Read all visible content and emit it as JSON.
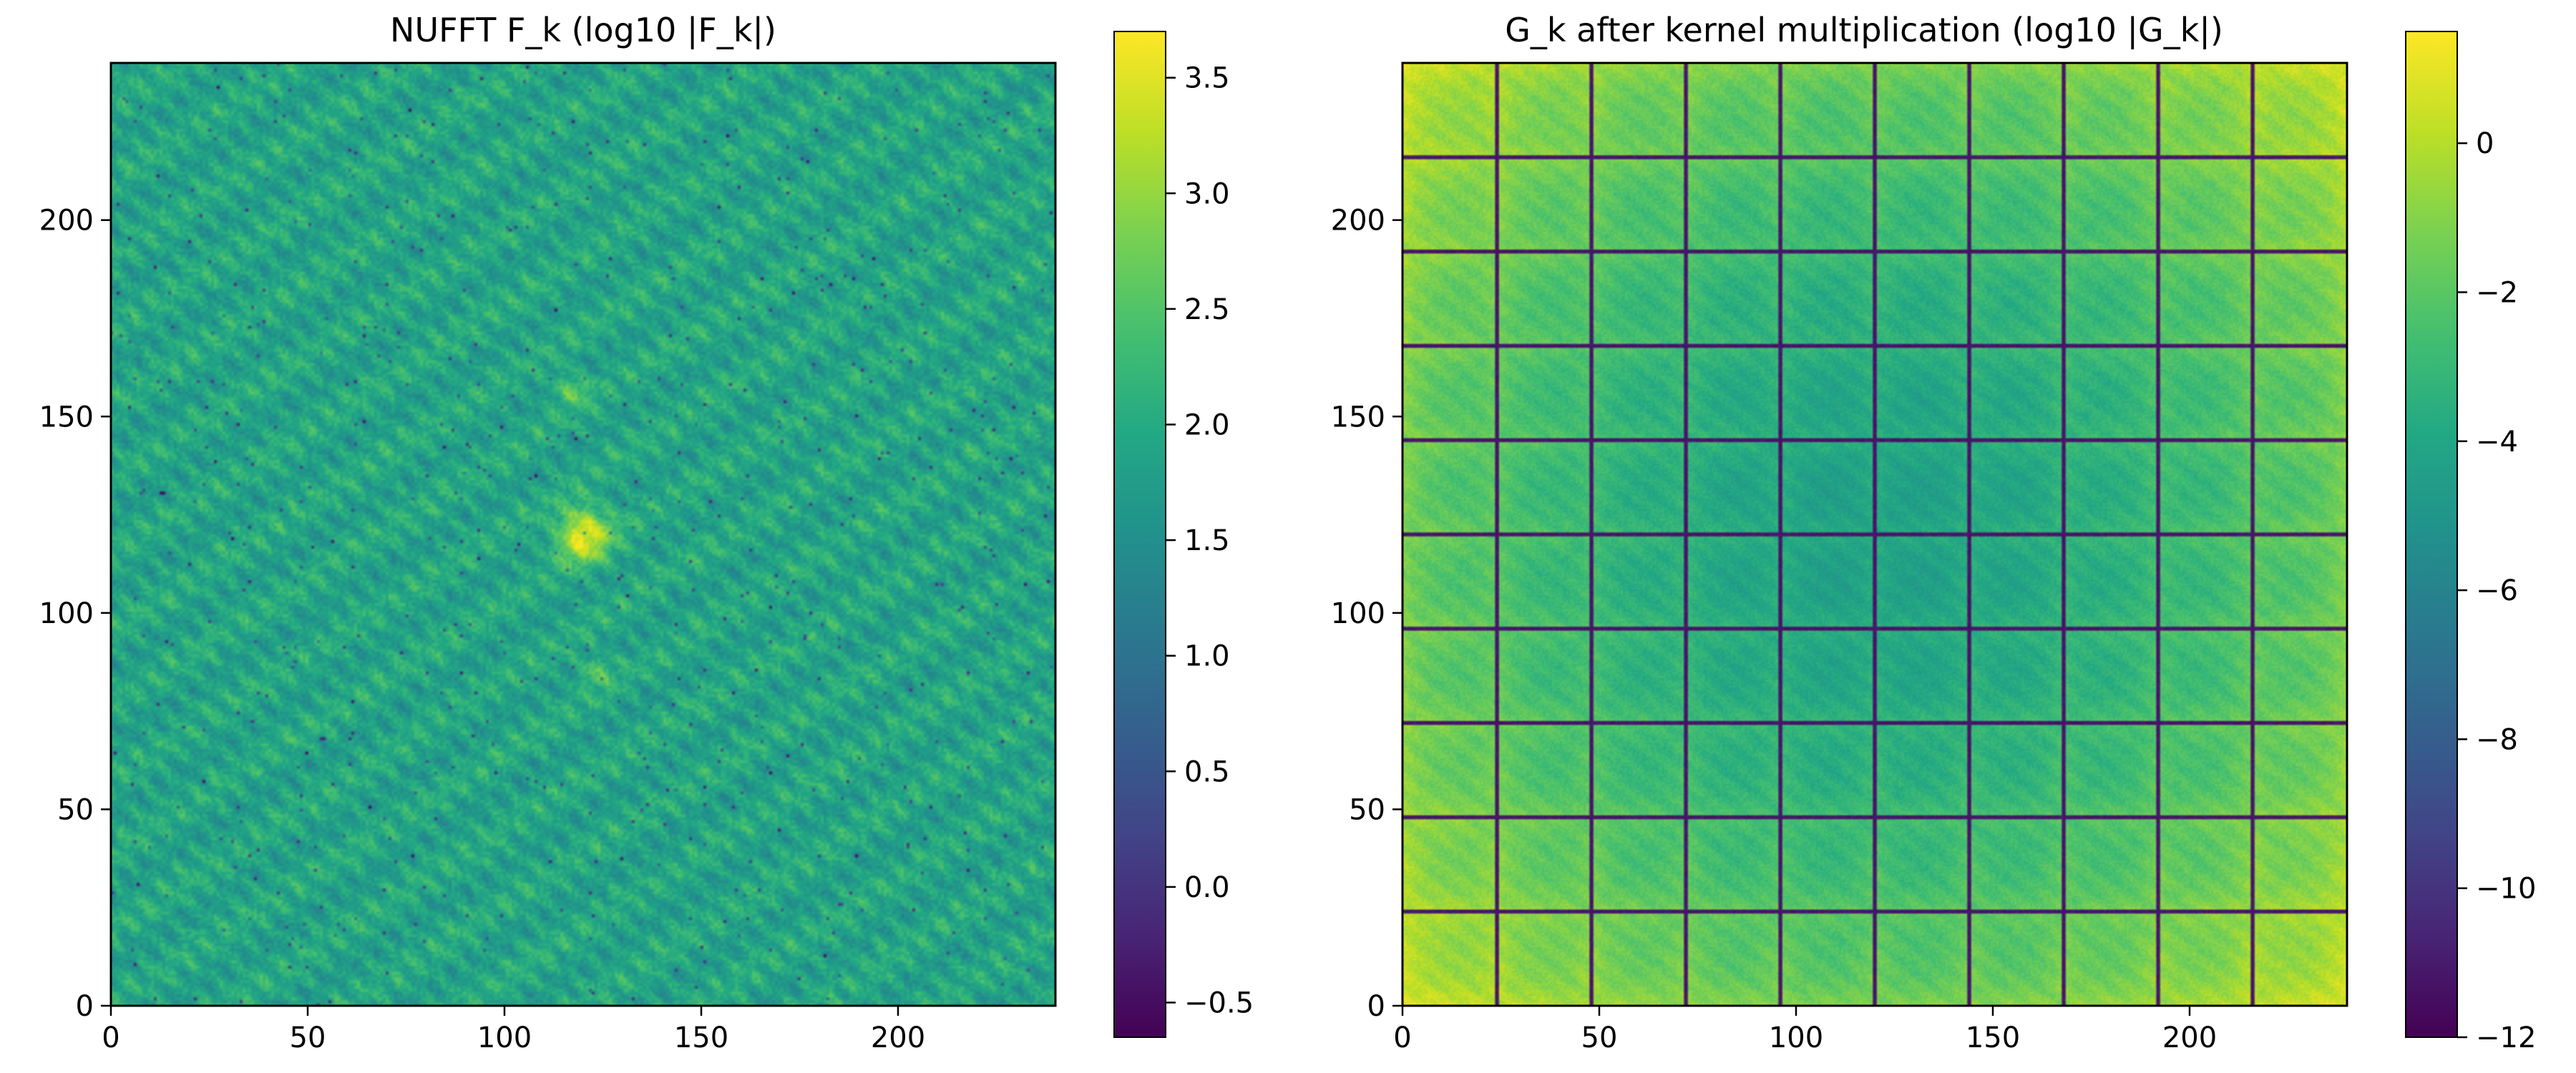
{
  "chart_data": [
    {
      "type": "heatmap",
      "title": "NUFFT F_k (log10 |F_k|)",
      "xlim": [
        0,
        240
      ],
      "ylim": [
        0,
        240
      ],
      "x_ticks": [
        0,
        50,
        100,
        150,
        200
      ],
      "y_ticks": [
        0,
        50,
        100,
        150,
        200
      ],
      "x_tick_labels": [
        "0",
        "50",
        "100",
        "150",
        "200"
      ],
      "y_tick_labels": [
        "0",
        "50",
        "100",
        "150",
        "200"
      ],
      "colormap": "viridis",
      "colorbar": {
        "range": [
          -0.65,
          3.7
        ],
        "ticks": [
          -0.5,
          0.0,
          0.5,
          1.0,
          1.5,
          2.0,
          2.5,
          3.0,
          3.5
        ],
        "tick_labels": [
          "−0.5",
          "0.0",
          "0.5",
          "1.0",
          "1.5",
          "2.0",
          "2.5",
          "3.0",
          "3.5"
        ]
      },
      "background_level": 1.9,
      "features": [
        {
          "kind": "bright-spot",
          "x": 120,
          "y": 120,
          "radius": 8,
          "value": 3.6
        },
        {
          "kind": "faint-spot",
          "x": 117,
          "y": 157,
          "radius": 5,
          "value": 2.6
        },
        {
          "kind": "faint-spot",
          "x": 123,
          "y": 85,
          "radius": 5,
          "value": 2.5
        }
      ]
    },
    {
      "type": "heatmap",
      "title": "G_k after kernel multiplication (log10 |G_k|)",
      "xlim": [
        0,
        240
      ],
      "ylim": [
        0,
        240
      ],
      "x_ticks": [
        0,
        50,
        100,
        150,
        200
      ],
      "y_ticks": [
        0,
        50,
        100,
        150,
        200
      ],
      "x_tick_labels": [
        "0",
        "50",
        "100",
        "150",
        "200"
      ],
      "y_tick_labels": [
        "0",
        "50",
        "100",
        "150",
        "200"
      ],
      "colormap": "viridis",
      "colorbar": {
        "range": [
          -12,
          1.5
        ],
        "ticks": [
          -12,
          -10,
          -8,
          -6,
          -4,
          -2,
          0
        ],
        "tick_labels": [
          "−12",
          "−10",
          "−8",
          "−6",
          "−4",
          "−2",
          "0"
        ]
      },
      "grid_period": 24,
      "grid_line_value": -11.5,
      "corner_peak_value": 1.4,
      "center_min_value": -4.0
    }
  ]
}
